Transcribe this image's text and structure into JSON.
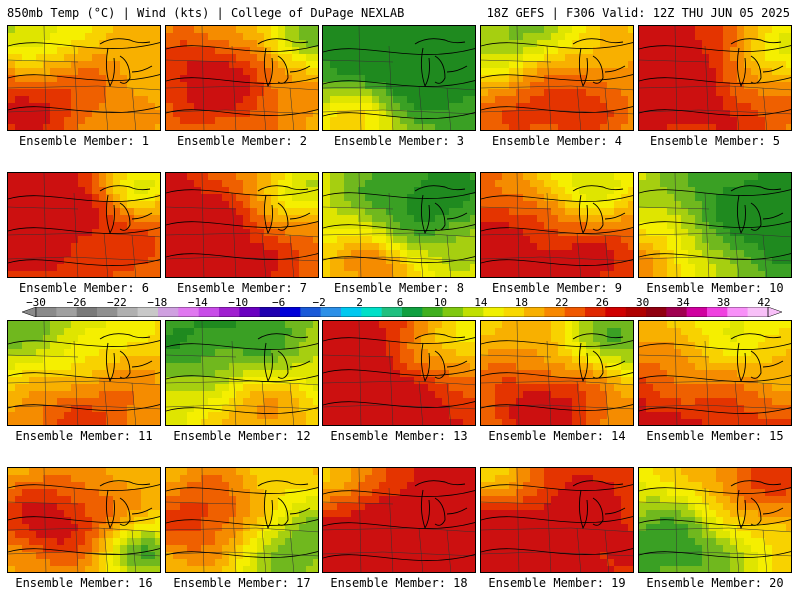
{
  "header": {
    "left": "850mb Temp (°C) | Wind (kts) | College of DuPage NEXLAB",
    "right": "18Z GEFS | F306 Valid: 12Z THU JUN 05 2025"
  },
  "colorbar": {
    "tick_labels": [
      "−30",
      "−26",
      "−22",
      "−18",
      "−14",
      "−10",
      "−6",
      "−2",
      "2",
      "6",
      "10",
      "14",
      "18",
      "22",
      "26",
      "30",
      "34",
      "38",
      "42"
    ],
    "min": -30,
    "max": 42,
    "step": 2,
    "colors": [
      "#8a8a8a",
      "#a0a0a0",
      "#7a7a7a",
      "#909090",
      "#b0b0b0",
      "#c8c8c8",
      "#cfa0e0",
      "#e078f0",
      "#c84ce8",
      "#a020d0",
      "#6a00c0",
      "#2000b0",
      "#0000d8",
      "#1a5ad8",
      "#2c90e8",
      "#00c8f0",
      "#00e0c8",
      "#20c080",
      "#10a040",
      "#40b020",
      "#80c810",
      "#c0e000",
      "#f0f000",
      "#f8d800",
      "#f8b000",
      "#f88800",
      "#f05800",
      "#e02800",
      "#d00000",
      "#b00000",
      "#900010",
      "#a00050",
      "#d000a0",
      "#f040e0",
      "#f890f8",
      "#f8c0f8"
    ]
  },
  "members": [
    {
      "label": "Ensemble Member: 1",
      "hot": [
        0.05,
        0.65,
        0.45
      ],
      "cool": [
        0.08,
        0.1,
        0.3
      ],
      "base": 0.6
    },
    {
      "label": "Ensemble Member: 2",
      "hot": [
        0.3,
        0.55,
        0.35
      ],
      "cool": [
        0.9,
        0.1,
        0.2
      ],
      "base": 0.62
    },
    {
      "label": "Ensemble Member: 3",
      "hot": [
        0.2,
        0.9,
        0.25
      ],
      "cool": [
        0.65,
        0.15,
        0.6
      ],
      "base": 0.3
    },
    {
      "label": "Ensemble Member: 4",
      "hot": [
        0.45,
        0.7,
        0.4
      ],
      "cool": [
        0.2,
        0.1,
        0.35
      ],
      "base": 0.58
    },
    {
      "label": "Ensemble Member: 5",
      "hot": [
        0.15,
        0.35,
        0.6
      ],
      "cool": [
        0.9,
        0.2,
        0.3
      ],
      "base": 0.72
    },
    {
      "label": "Ensemble Member: 6",
      "hot": [
        0.1,
        0.3,
        0.7
      ],
      "cool": [
        0.85,
        0.1,
        0.2
      ],
      "base": 0.66
    },
    {
      "label": "Ensemble Member: 7",
      "hot": [
        0.1,
        0.65,
        0.7
      ],
      "cool": [
        0.9,
        0.15,
        0.25
      ],
      "base": 0.64
    },
    {
      "label": "Ensemble Member: 8",
      "hot": [
        0.3,
        0.85,
        0.2
      ],
      "cool": [
        0.7,
        0.2,
        0.45
      ],
      "base": 0.48
    },
    {
      "label": "Ensemble Member: 9",
      "hot": [
        0.35,
        0.85,
        0.75
      ],
      "cool": [
        0.7,
        0.1,
        0.3
      ],
      "base": 0.62
    },
    {
      "label": "Ensemble Member: 10",
      "hot": [
        0.05,
        0.85,
        0.3
      ],
      "cool": [
        0.85,
        0.4,
        0.6
      ],
      "base": 0.45
    },
    {
      "label": "Ensemble Member: 11",
      "hot": [
        0.4,
        0.8,
        0.45
      ],
      "cool": [
        0.1,
        0.15,
        0.5
      ],
      "base": 0.58
    },
    {
      "label": "Ensemble Member: 12",
      "hot": [
        0.6,
        0.8,
        0.3
      ],
      "cool": [
        0.35,
        0.15,
        0.6
      ],
      "base": 0.5
    },
    {
      "label": "Ensemble Member: 13",
      "hot": [
        0.2,
        0.65,
        0.8
      ],
      "cool": [
        0.9,
        0.2,
        0.3
      ],
      "base": 0.72
    },
    {
      "label": "Ensemble Member: 14",
      "hot": [
        0.4,
        0.85,
        0.35
      ],
      "cool": [
        0.9,
        0.15,
        0.25
      ],
      "base": 0.6
    },
    {
      "label": "Ensemble Member: 15",
      "hot": [
        0.3,
        0.75,
        0.8
      ],
      "cool": [
        0.6,
        0.1,
        0.5
      ],
      "base": 0.64
    },
    {
      "label": "Ensemble Member: 16",
      "hot": [
        0.3,
        0.5,
        0.3
      ],
      "cool": [
        0.9,
        0.8,
        0.2
      ],
      "base": 0.6
    },
    {
      "label": "Ensemble Member: 17",
      "hot": [
        0.3,
        0.5,
        0.3
      ],
      "cool": [
        0.85,
        0.75,
        0.35
      ],
      "base": 0.58
    },
    {
      "label": "Ensemble Member: 18",
      "hot": [
        0.25,
        0.75,
        0.85
      ],
      "cool": [
        0.05,
        0.1,
        0.25
      ],
      "base": 0.74
    },
    {
      "label": "Ensemble Member: 19",
      "hot": [
        0.1,
        0.6,
        0.8
      ],
      "cool": [
        0.05,
        0.05,
        0.25
      ],
      "base": 0.7
    },
    {
      "label": "Ensemble Member: 20",
      "hot": [
        0.8,
        0.15,
        0.35
      ],
      "cool": [
        0.2,
        0.75,
        0.4
      ],
      "base": 0.52
    }
  ]
}
